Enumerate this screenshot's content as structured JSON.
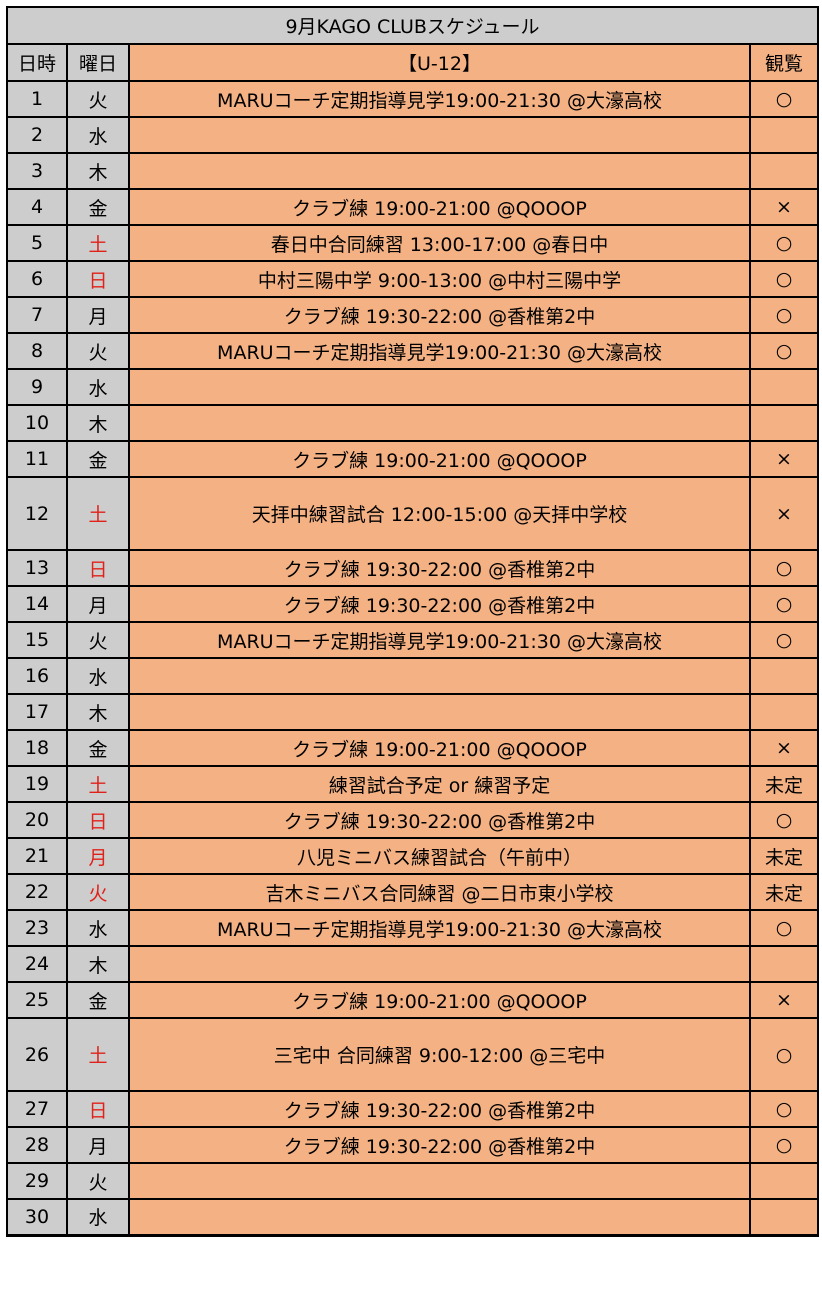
{
  "title": "9月KAGO CLUBスケジュール",
  "headers": {
    "day": "日時",
    "dow": "曜日",
    "event": "【U-12】",
    "observe": "観覧"
  },
  "rows": [
    {
      "day": "1",
      "dow": "火",
      "red": false,
      "event": "MARUコーチ定期指導見学19:00-21:30 @大濠高校",
      "obs": "○"
    },
    {
      "day": "2",
      "dow": "水",
      "red": false,
      "event": "",
      "obs": ""
    },
    {
      "day": "3",
      "dow": "木",
      "red": false,
      "event": "",
      "obs": ""
    },
    {
      "day": "4",
      "dow": "金",
      "red": false,
      "event": "クラブ練 19:00-21:00 @QOOOP",
      "obs": "×"
    },
    {
      "day": "5",
      "dow": "土",
      "red": true,
      "event": "春日中合同練習 13:00-17:00 @春日中",
      "obs": "○"
    },
    {
      "day": "6",
      "dow": "日",
      "red": true,
      "event": "中村三陽中学 9:00-13:00 @中村三陽中学",
      "obs": "○"
    },
    {
      "day": "7",
      "dow": "月",
      "red": false,
      "event": "クラブ練 19:30-22:00 @香椎第2中",
      "obs": "○"
    },
    {
      "day": "8",
      "dow": "火",
      "red": false,
      "event": "MARUコーチ定期指導見学19:00-21:30 @大濠高校",
      "obs": "○"
    },
    {
      "day": "9",
      "dow": "水",
      "red": false,
      "event": "",
      "obs": ""
    },
    {
      "day": "10",
      "dow": "木",
      "red": false,
      "event": "",
      "obs": ""
    },
    {
      "day": "11",
      "dow": "金",
      "red": false,
      "event": "クラブ練 19:00-21:00 @QOOOP",
      "obs": "×"
    },
    {
      "day": "12",
      "dow": "土",
      "red": true,
      "tall": true,
      "event": "天拝中練習試合 12:00-15:00 @天拝中学校",
      "obs": "×"
    },
    {
      "day": "13",
      "dow": "日",
      "red": true,
      "event": "クラブ練 19:30-22:00 @香椎第2中",
      "obs": "○"
    },
    {
      "day": "14",
      "dow": "月",
      "red": false,
      "event": "クラブ練 19:30-22:00 @香椎第2中",
      "obs": "○"
    },
    {
      "day": "15",
      "dow": "火",
      "red": false,
      "event": "MARUコーチ定期指導見学19:00-21:30 @大濠高校",
      "obs": "○"
    },
    {
      "day": "16",
      "dow": "水",
      "red": false,
      "event": "",
      "obs": ""
    },
    {
      "day": "17",
      "dow": "木",
      "red": false,
      "event": "",
      "obs": ""
    },
    {
      "day": "18",
      "dow": "金",
      "red": false,
      "event": "クラブ練 19:00-21:00 @QOOOP",
      "obs": "×"
    },
    {
      "day": "19",
      "dow": "土",
      "red": true,
      "event": "練習試合予定 or 練習予定",
      "obs": "未定"
    },
    {
      "day": "20",
      "dow": "日",
      "red": true,
      "event": "クラブ練 19:30-22:00 @香椎第2中",
      "obs": "○"
    },
    {
      "day": "21",
      "dow": "月",
      "red": true,
      "event": "八児ミニバス練習試合（午前中）",
      "obs": "未定"
    },
    {
      "day": "22",
      "dow": "火",
      "red": true,
      "event": "吉木ミニバス合同練習 @二日市東小学校",
      "obs": "未定"
    },
    {
      "day": "23",
      "dow": "水",
      "red": false,
      "event": "MARUコーチ定期指導見学19:00-21:30 @大濠高校",
      "obs": "○"
    },
    {
      "day": "24",
      "dow": "木",
      "red": false,
      "event": "",
      "obs": ""
    },
    {
      "day": "25",
      "dow": "金",
      "red": false,
      "event": "クラブ練 19:00-21:00 @QOOOP",
      "obs": "×"
    },
    {
      "day": "26",
      "dow": "土",
      "red": true,
      "tall": true,
      "event": "三宅中 合同練習 9:00-12:00 @三宅中",
      "obs": "○"
    },
    {
      "day": "27",
      "dow": "日",
      "red": true,
      "event": "クラブ練 19:30-22:00 @香椎第2中",
      "obs": "○"
    },
    {
      "day": "28",
      "dow": "月",
      "red": false,
      "event": "クラブ練 19:30-22:00 @香椎第2中",
      "obs": "○"
    },
    {
      "day": "29",
      "dow": "火",
      "red": false,
      "event": "",
      "obs": ""
    },
    {
      "day": "30",
      "dow": "水",
      "red": false,
      "event": "",
      "obs": ""
    }
  ]
}
